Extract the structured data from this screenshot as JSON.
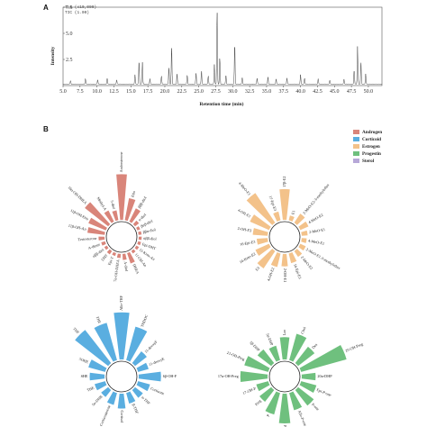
{
  "panels": {
    "a": "A",
    "b": "B"
  },
  "chromatogram_header": [
    "7.5 (x10,000)",
    "TIC (1.00)"
  ],
  "chart_data": [
    {
      "type": "line",
      "panel": "A",
      "xlabel": "Retention time (min)",
      "ylabel": "Intensity",
      "xlim": [
        5.0,
        52.0
      ],
      "ylim": [
        0,
        7.5
      ],
      "xticks": [
        "5.0",
        "7.5",
        "10.0",
        "12.5",
        "15.0",
        "17.5",
        "20.0",
        "22.5",
        "25.0",
        "27.5",
        "30.0",
        "32.5",
        "35.0",
        "37.5",
        "40.0",
        "42.5",
        "45.0",
        "47.5",
        "50.0"
      ],
      "yticks": [
        "2.5",
        "5.0",
        "7.5"
      ],
      "peaks": [
        {
          "x": 6.1,
          "y": 0.35
        },
        {
          "x": 8.3,
          "y": 0.55
        },
        {
          "x": 10.1,
          "y": 0.45
        },
        {
          "x": 11.5,
          "y": 0.6
        },
        {
          "x": 12.9,
          "y": 0.4
        },
        {
          "x": 15.6,
          "y": 0.9
        },
        {
          "x": 16.2,
          "y": 2.3
        },
        {
          "x": 16.7,
          "y": 2.1
        },
        {
          "x": 17.8,
          "y": 0.5
        },
        {
          "x": 19.5,
          "y": 0.8
        },
        {
          "x": 20.6,
          "y": 1.6
        },
        {
          "x": 21.0,
          "y": 3.7
        },
        {
          "x": 21.8,
          "y": 1.0
        },
        {
          "x": 23.3,
          "y": 0.9
        },
        {
          "x": 24.6,
          "y": 1.1
        },
        {
          "x": 25.4,
          "y": 1.3
        },
        {
          "x": 26.4,
          "y": 0.8
        },
        {
          "x": 27.3,
          "y": 1.9
        },
        {
          "x": 27.7,
          "y": 7.2
        },
        {
          "x": 28.1,
          "y": 2.6
        },
        {
          "x": 29.0,
          "y": 0.9
        },
        {
          "x": 30.3,
          "y": 4.0
        },
        {
          "x": 31.4,
          "y": 0.7
        },
        {
          "x": 33.6,
          "y": 0.6
        },
        {
          "x": 35.2,
          "y": 0.7
        },
        {
          "x": 36.4,
          "y": 0.5
        },
        {
          "x": 38.0,
          "y": 0.6
        },
        {
          "x": 40.0,
          "y": 0.9
        },
        {
          "x": 40.6,
          "y": 0.6
        },
        {
          "x": 42.6,
          "y": 0.5
        },
        {
          "x": 44.3,
          "y": 0.4
        },
        {
          "x": 46.4,
          "y": 0.5
        },
        {
          "x": 47.9,
          "y": 1.4
        },
        {
          "x": 48.4,
          "y": 3.6
        },
        {
          "x": 48.9,
          "y": 2.2
        },
        {
          "x": 49.6,
          "y": 1.0
        }
      ]
    },
    {
      "type": "radial-bar",
      "panel": "B",
      "legend": [
        {
          "name": "Androgen",
          "color": "#d9857a"
        },
        {
          "name": "Corticoid",
          "color": "#5aaee0"
        },
        {
          "name": "Estrogen",
          "color": "#f3c28a"
        },
        {
          "name": "Progestin",
          "color": "#6fc07e"
        },
        {
          "name": "Sterol",
          "color": "#b7a8d8"
        }
      ],
      "groups": [
        {
          "name": "Androgen",
          "items": [
            {
              "label": "Androsterone",
              "value": 0.92
            },
            {
              "label": "Etio",
              "value": 0.45
            },
            {
              "label": "βββ-diol",
              "value": 0.3
            },
            {
              "label": "α-diol",
              "value": 0.1
            },
            {
              "label": "βαβ-diol",
              "value": 0.06
            },
            {
              "label": "ββα-diol",
              "value": 0.06
            },
            {
              "label": "αββ-diol",
              "value": 0.06
            },
            {
              "label": "Epi-DHT",
              "value": 0.06
            },
            {
              "label": "11-Keto-An",
              "value": 0.06
            },
            {
              "label": "11-OH-An",
              "value": 0.06
            },
            {
              "label": "DHEA",
              "value": 0.22
            },
            {
              "label": "A-diol",
              "value": 0.12
            },
            {
              "label": "7α-OH-DHEA",
              "value": 0.08
            },
            {
              "label": "Epi-T",
              "value": 0.06
            },
            {
              "label": "DHT",
              "value": 0.08
            },
            {
              "label": "αββ-diol",
              "value": 0.06
            },
            {
              "label": "A-dione",
              "value": 0.08
            },
            {
              "label": "Testosterone",
              "value": 0.12
            },
            {
              "label": "11β-OH-An",
              "value": 0.35
            },
            {
              "label": "11β-OH-Etio",
              "value": 0.38
            },
            {
              "label": "16α-OH-DHEA",
              "value": 0.6
            },
            {
              "label": "Methyl-A",
              "value": 0.25
            },
            {
              "label": "5-diol",
              "value": 0.2
            }
          ]
        },
        {
          "name": "Estrogen",
          "items": [
            {
              "label": "17β-E2",
              "value": 0.62
            },
            {
              "label": "E1",
              "value": 0.1
            },
            {
              "label": "2-MeO-E2-3-methylether",
              "value": 0.22
            },
            {
              "label": "4-MeO-E2",
              "value": 0.18
            },
            {
              "label": "2-MeO-E1",
              "value": 0.12
            },
            {
              "label": "4-MeO-E1",
              "value": 0.1
            },
            {
              "label": "2-MeO-E1-3-methylether",
              "value": 0.12
            },
            {
              "label": "2-MeO-E2",
              "value": 0.14
            },
            {
              "label": "16-Epi-E3",
              "value": 0.2
            },
            {
              "label": "2-OH-E1",
              "value": 0.25
            },
            {
              "label": "4-OH-E2",
              "value": 0.28
            },
            {
              "label": "E3",
              "value": 0.42
            },
            {
              "label": "16-Keto-E2",
              "value": 0.3
            },
            {
              "label": "16-Epi-E3",
              "value": 0.22
            },
            {
              "label": "2-OH-E3",
              "value": 0.3
            },
            {
              "label": "4-OH-E1",
              "value": 0.42
            },
            {
              "label": "4-MeO-E1",
              "value": 0.72
            },
            {
              "label": "17-Epi-E3",
              "value": 0.18
            }
          ]
        },
        {
          "name": "Corticoid",
          "items": [
            {
              "label": "Allo-THF",
              "value": 0.95
            },
            {
              "label": "THDOC",
              "value": 0.7
            },
            {
              "label": "11-deoxyF",
              "value": 0.3
            },
            {
              "label": "11-deoxyE",
              "value": 0.22
            },
            {
              "label": "6β-OH-F",
              "value": 0.45
            },
            {
              "label": "Cortisone",
              "value": 0.25
            },
            {
              "label": "α-THF",
              "value": 0.2
            },
            {
              "label": "β-THF",
              "value": 0.22
            },
            {
              "label": "Cortisol",
              "value": 0.3
            },
            {
              "label": "Corticosterone",
              "value": 0.25
            },
            {
              "label": "5α-DHB",
              "value": 0.18
            },
            {
              "label": "THE",
              "value": 0.22
            },
            {
              "label": "SHE",
              "value": 0.3
            },
            {
              "label": "5OHE",
              "value": 0.35
            },
            {
              "label": "THF",
              "value": 0.85
            },
            {
              "label": "THE",
              "value": 0.78
            }
          ]
        },
        {
          "name": "Progestin",
          "items": [
            {
              "label": "Lan",
              "value": 0.45
            },
            {
              "label": "Chol",
              "value": 0.55
            },
            {
              "label": "Des",
              "value": 0.42
            },
            {
              "label": "20-OH-Preg",
              "value": 0.95
            },
            {
              "label": "20α-DHP",
              "value": 0.28
            },
            {
              "label": "Epi-P-one",
              "value": 0.32
            },
            {
              "label": "P-one",
              "value": 0.4
            },
            {
              "label": "Allo-P-one",
              "value": 0.36
            },
            {
              "label": "P-diol",
              "value": 0.6
            },
            {
              "label": "P",
              "value": 0.45
            },
            {
              "label": "Preg",
              "value": 0.3
            },
            {
              "label": "17-OH-P",
              "value": 0.25
            },
            {
              "label": "17α-OH-Preg",
              "value": 0.55
            },
            {
              "label": "21-OH-Preg",
              "value": 0.5
            },
            {
              "label": "5β-DHP",
              "value": 0.35
            },
            {
              "label": "5α-DHP",
              "value": 0.3
            }
          ]
        }
      ]
    }
  ]
}
